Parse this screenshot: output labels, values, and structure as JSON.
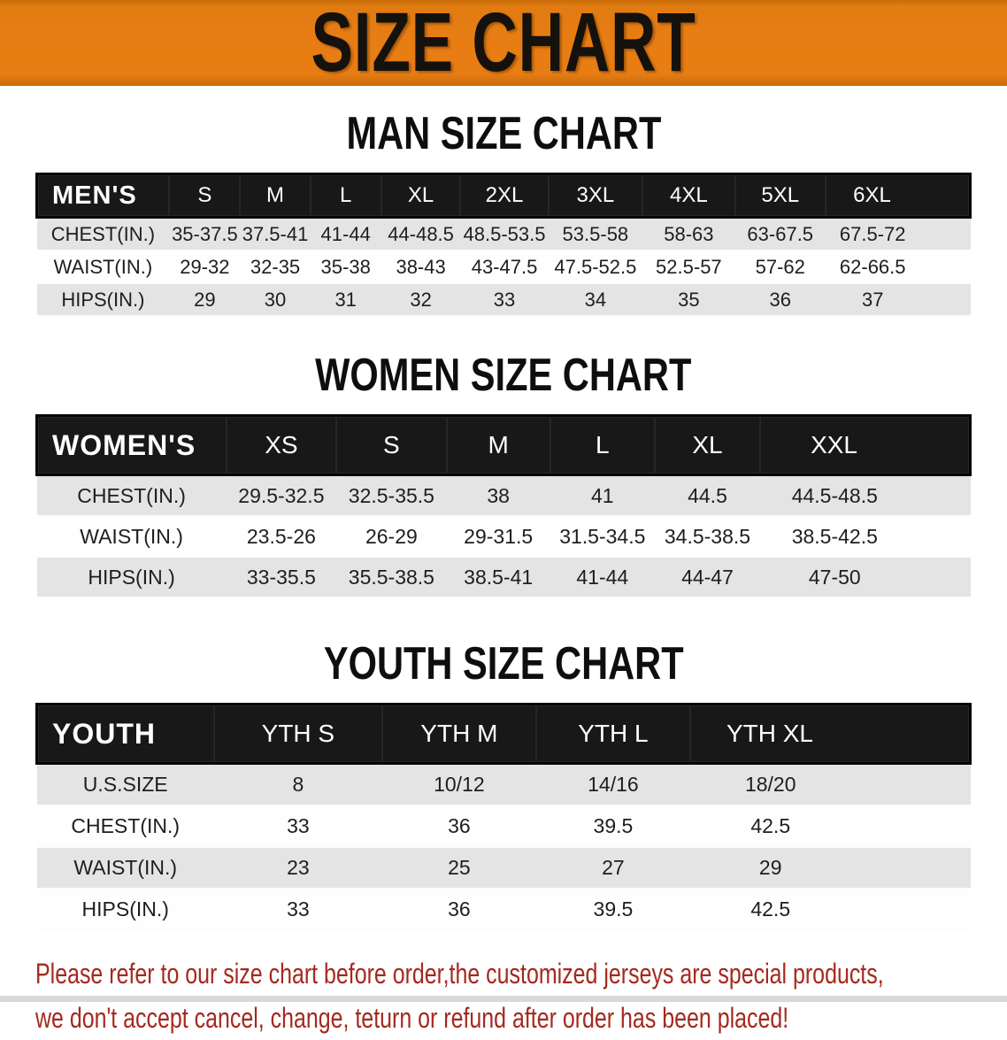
{
  "banner": {
    "title": "SIZE CHART"
  },
  "sections": [
    {
      "id": "men",
      "title": "MAN SIZE CHART",
      "header_label": "MEN'S",
      "columns": [
        "S",
        "M",
        "L",
        "XL",
        "2XL",
        "3XL",
        "4XL",
        "5XL",
        "6XL"
      ],
      "rows": [
        {
          "label": "CHEST(IN.)",
          "values": [
            "35-37.5",
            "37.5-41",
            "41-44",
            "44-48.5",
            "48.5-53.5",
            "53.5-58",
            "58-63",
            "63-67.5",
            "67.5-72"
          ]
        },
        {
          "label": "WAIST(IN.)",
          "values": [
            "29-32",
            "32-35",
            "35-38",
            "38-43",
            "43-47.5",
            "47.5-52.5",
            "52.5-57",
            "57-62",
            "62-66.5"
          ]
        },
        {
          "label": "HIPS(IN.)",
          "values": [
            "29",
            "30",
            "31",
            "32",
            "33",
            "34",
            "35",
            "36",
            "37"
          ]
        }
      ]
    },
    {
      "id": "women",
      "title": "WOMEN SIZE CHART",
      "header_label": "WOMEN'S",
      "columns": [
        "XS",
        "S",
        "M",
        "L",
        "XL",
        "XXL"
      ],
      "rows": [
        {
          "label": "CHEST(IN.)",
          "values": [
            "29.5-32.5",
            "32.5-35.5",
            "38",
            "41",
            "44.5",
            "44.5-48.5"
          ]
        },
        {
          "label": "WAIST(IN.)",
          "values": [
            "23.5-26",
            "26-29",
            "29-31.5",
            "31.5-34.5",
            "34.5-38.5",
            "38.5-42.5"
          ]
        },
        {
          "label": "HIPS(IN.)",
          "values": [
            "33-35.5",
            "35.5-38.5",
            "38.5-41",
            "41-44",
            "44-47",
            "47-50"
          ]
        }
      ]
    },
    {
      "id": "youth",
      "title": "YOUTH SIZE CHART",
      "header_label": "YOUTH",
      "columns": [
        "YTH S",
        "YTH M",
        "YTH L",
        "YTH XL"
      ],
      "rows": [
        {
          "label": "U.S.SIZE",
          "values": [
            "8",
            "10/12",
            "14/16",
            "18/20"
          ]
        },
        {
          "label": "CHEST(IN.)",
          "values": [
            "33",
            "36",
            "39.5",
            "42.5"
          ]
        },
        {
          "label": "WAIST(IN.)",
          "values": [
            "23",
            "25",
            "27",
            "29"
          ]
        },
        {
          "label": "HIPS(IN.)",
          "values": [
            "33",
            "36",
            "39.5",
            "42.5"
          ]
        }
      ]
    }
  ],
  "disclaimer": {
    "line1": "Please refer to our size chart before order,the customized jerseys are special products,",
    "line2": "we don't accept cancel, change, teturn or refund after order has been placed!"
  },
  "colors": {
    "banner_bg": "#E87D14",
    "header_bar_bg": "#181818",
    "header_bar_text": "#FFFFFF",
    "row_stripe": "#E4E4E4",
    "row_plain": "#FEFEFE",
    "body_text": "#1E1E1E",
    "title_text": "#0E0E0E",
    "disclaimer_text": "#A5291F"
  }
}
